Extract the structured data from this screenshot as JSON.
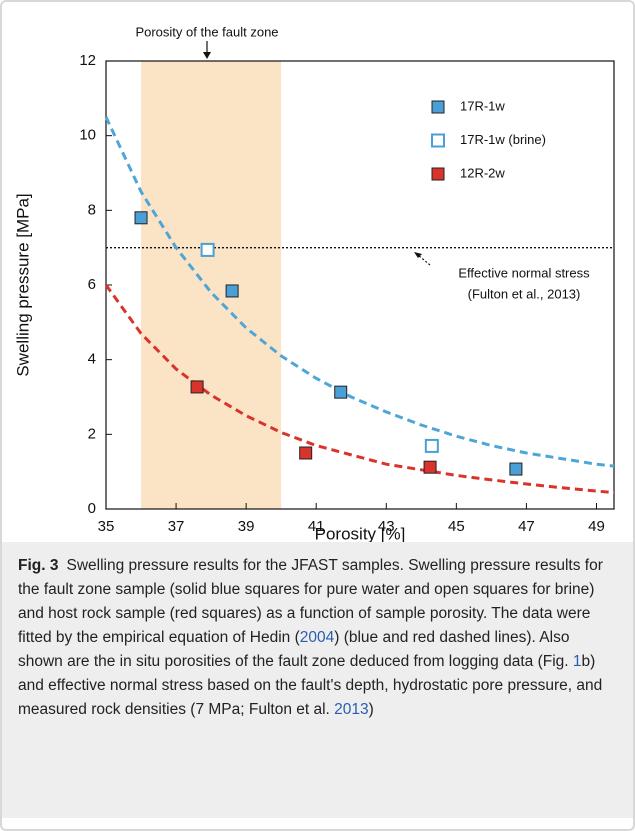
{
  "chart_data": {
    "type": "scatter",
    "xlabel": "Porosity [%]",
    "ylabel": "Swelling pressure [MPa]",
    "xlim": [
      35,
      49.5
    ],
    "xticks": [
      35,
      37,
      39,
      41,
      43,
      45,
      47,
      49
    ],
    "ylim": [
      0,
      12
    ],
    "yticks": [
      0,
      2,
      4,
      6,
      8,
      10,
      12
    ],
    "legend": "upper right",
    "series": [
      {
        "name": "17R-1w",
        "color": "#4a9fd6",
        "marker": "filled",
        "x": [
          36.0,
          38.6,
          41.7,
          46.7
        ],
        "values": [
          7.8,
          5.84,
          3.13,
          1.07
        ]
      },
      {
        "name": "17R-1w (brine)",
        "color": "#4a9fd6",
        "marker": "open",
        "x": [
          37.9,
          44.3
        ],
        "values": [
          6.94,
          1.69
        ]
      },
      {
        "name": "12R-2w",
        "color": "#d9342b",
        "marker": "filled",
        "x": [
          37.6,
          40.7,
          44.25
        ],
        "values": [
          3.27,
          1.5,
          1.12
        ]
      }
    ],
    "fits": [
      {
        "color": "#4ea6d8",
        "x": [
          35,
          36,
          37,
          38,
          39,
          40,
          41,
          42,
          43,
          44,
          45,
          46,
          47,
          48,
          49,
          49.5
        ],
        "values": [
          10.5,
          8.5,
          7.0,
          5.8,
          4.85,
          4.1,
          3.5,
          3.0,
          2.6,
          2.25,
          1.95,
          1.7,
          1.5,
          1.35,
          1.2,
          1.15
        ]
      },
      {
        "color": "#d9342b",
        "x": [
          35,
          36,
          37,
          38,
          39,
          40,
          41,
          42,
          43,
          44,
          45,
          46,
          47,
          48,
          49,
          49.5
        ],
        "values": [
          6.0,
          4.7,
          3.75,
          3.05,
          2.5,
          2.05,
          1.7,
          1.45,
          1.2,
          1.05,
          0.9,
          0.78,
          0.67,
          0.57,
          0.48,
          0.44
        ]
      }
    ],
    "shaded_xrange": [
      36,
      40
    ],
    "shade_color": "#fbe3c6",
    "hline": 7,
    "annotations": [
      "Porosity of the fault zone",
      "Effective normal stress",
      "(Fulton et al., 2013)"
    ]
  },
  "caption": [
    "Fig. 3",
    "Swelling pressure results for the JFAST samples. Swelling pressure results for the fault zone sample (solid blue squares for pure water and open squares for brine) and host rock sample (red squares) as a function of sample porosity. The data were fitted by the empirical equation of Hedin (",
    "2004",
    ") (blue and red dashed lines). Also shown are the in situ porosities of the fault zone deduced from logging data (Fig. ",
    "1",
    "b) and effective normal stress based on the fault's depth, hydrostatic pore pressure, and measured rock densities (7 MPa; Fulton et al. ",
    "2013",
    ")"
  ]
}
